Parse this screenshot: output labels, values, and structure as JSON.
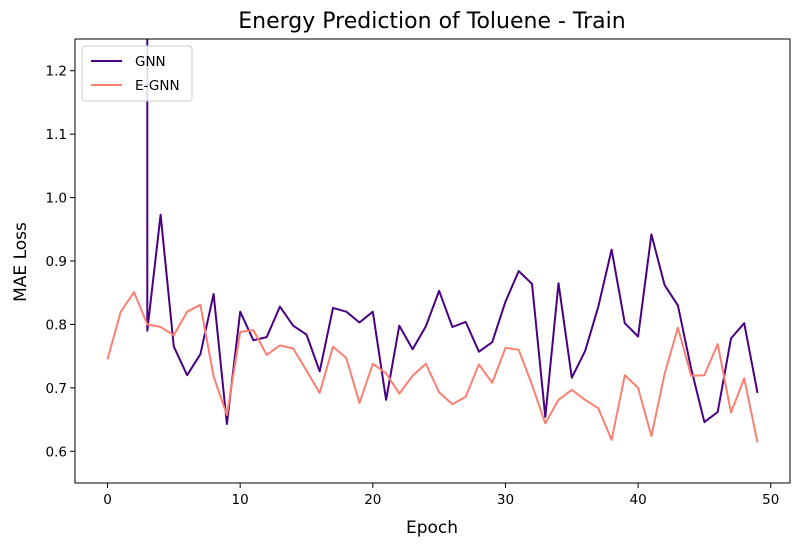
{
  "chart_data": {
    "type": "line",
    "title": "Energy Prediction of Toluene - Train",
    "xlabel": "Epoch",
    "ylabel": "MAE Loss",
    "xlim": [
      -2.45,
      51.45
    ],
    "ylim": [
      0.55,
      1.25
    ],
    "xticks": [
      0,
      10,
      20,
      30,
      40,
      50
    ],
    "xtick_labels": [
      "0",
      "10",
      "20",
      "30",
      "40",
      "50"
    ],
    "yticks": [
      0.6,
      0.7,
      0.8,
      0.9,
      1.0,
      1.1,
      1.2
    ],
    "ytick_labels": [
      "0.6",
      "0.7",
      "0.8",
      "0.9",
      "1.0",
      "1.1",
      "1.2"
    ],
    "grid": false,
    "legend_position": "top-left",
    "x": [
      0,
      1,
      2,
      3,
      4,
      5,
      6,
      7,
      8,
      9,
      10,
      11,
      12,
      13,
      14,
      15,
      16,
      17,
      18,
      19,
      20,
      21,
      22,
      23,
      24,
      25,
      26,
      27,
      28,
      29,
      30,
      31,
      32,
      33,
      34,
      35,
      36,
      37,
      38,
      39,
      40,
      41,
      42,
      43,
      44,
      45,
      46,
      47,
      48,
      49
    ],
    "series": [
      {
        "name": "GNN",
        "color": "#4b0082",
        "values": [
          null,
          null,
          null,
          0.79,
          0.973,
          0.765,
          0.72,
          0.753,
          0.848,
          0.643,
          0.82,
          0.775,
          0.78,
          0.828,
          0.798,
          0.784,
          0.726,
          0.826,
          0.82,
          0.803,
          0.82,
          0.681,
          0.798,
          0.761,
          0.797,
          0.853,
          0.796,
          0.804,
          0.757,
          0.772,
          0.836,
          0.884,
          0.864,
          0.654,
          0.865,
          0.716,
          0.758,
          0.828,
          0.918,
          0.802,
          0.781,
          0.942,
          0.862,
          0.83,
          0.73,
          0.646,
          0.662,
          0.778,
          0.802,
          0.692
        ]
      },
      {
        "name": "E-GNN",
        "color": "#fa8072",
        "values": [
          0.745,
          0.82,
          0.851,
          0.8,
          0.796,
          0.783,
          0.82,
          0.831,
          0.718,
          0.657,
          0.788,
          0.791,
          0.752,
          0.767,
          0.762,
          0.727,
          0.692,
          0.765,
          0.747,
          0.676,
          0.738,
          0.723,
          0.691,
          0.719,
          0.738,
          0.693,
          0.674,
          0.686,
          0.737,
          0.708,
          0.763,
          0.76,
          0.705,
          0.644,
          0.681,
          0.697,
          0.681,
          0.668,
          0.618,
          0.72,
          0.7,
          0.624,
          0.722,
          0.795,
          0.719,
          0.72,
          0.769,
          0.661,
          0.715,
          0.614
        ]
      }
    ]
  }
}
